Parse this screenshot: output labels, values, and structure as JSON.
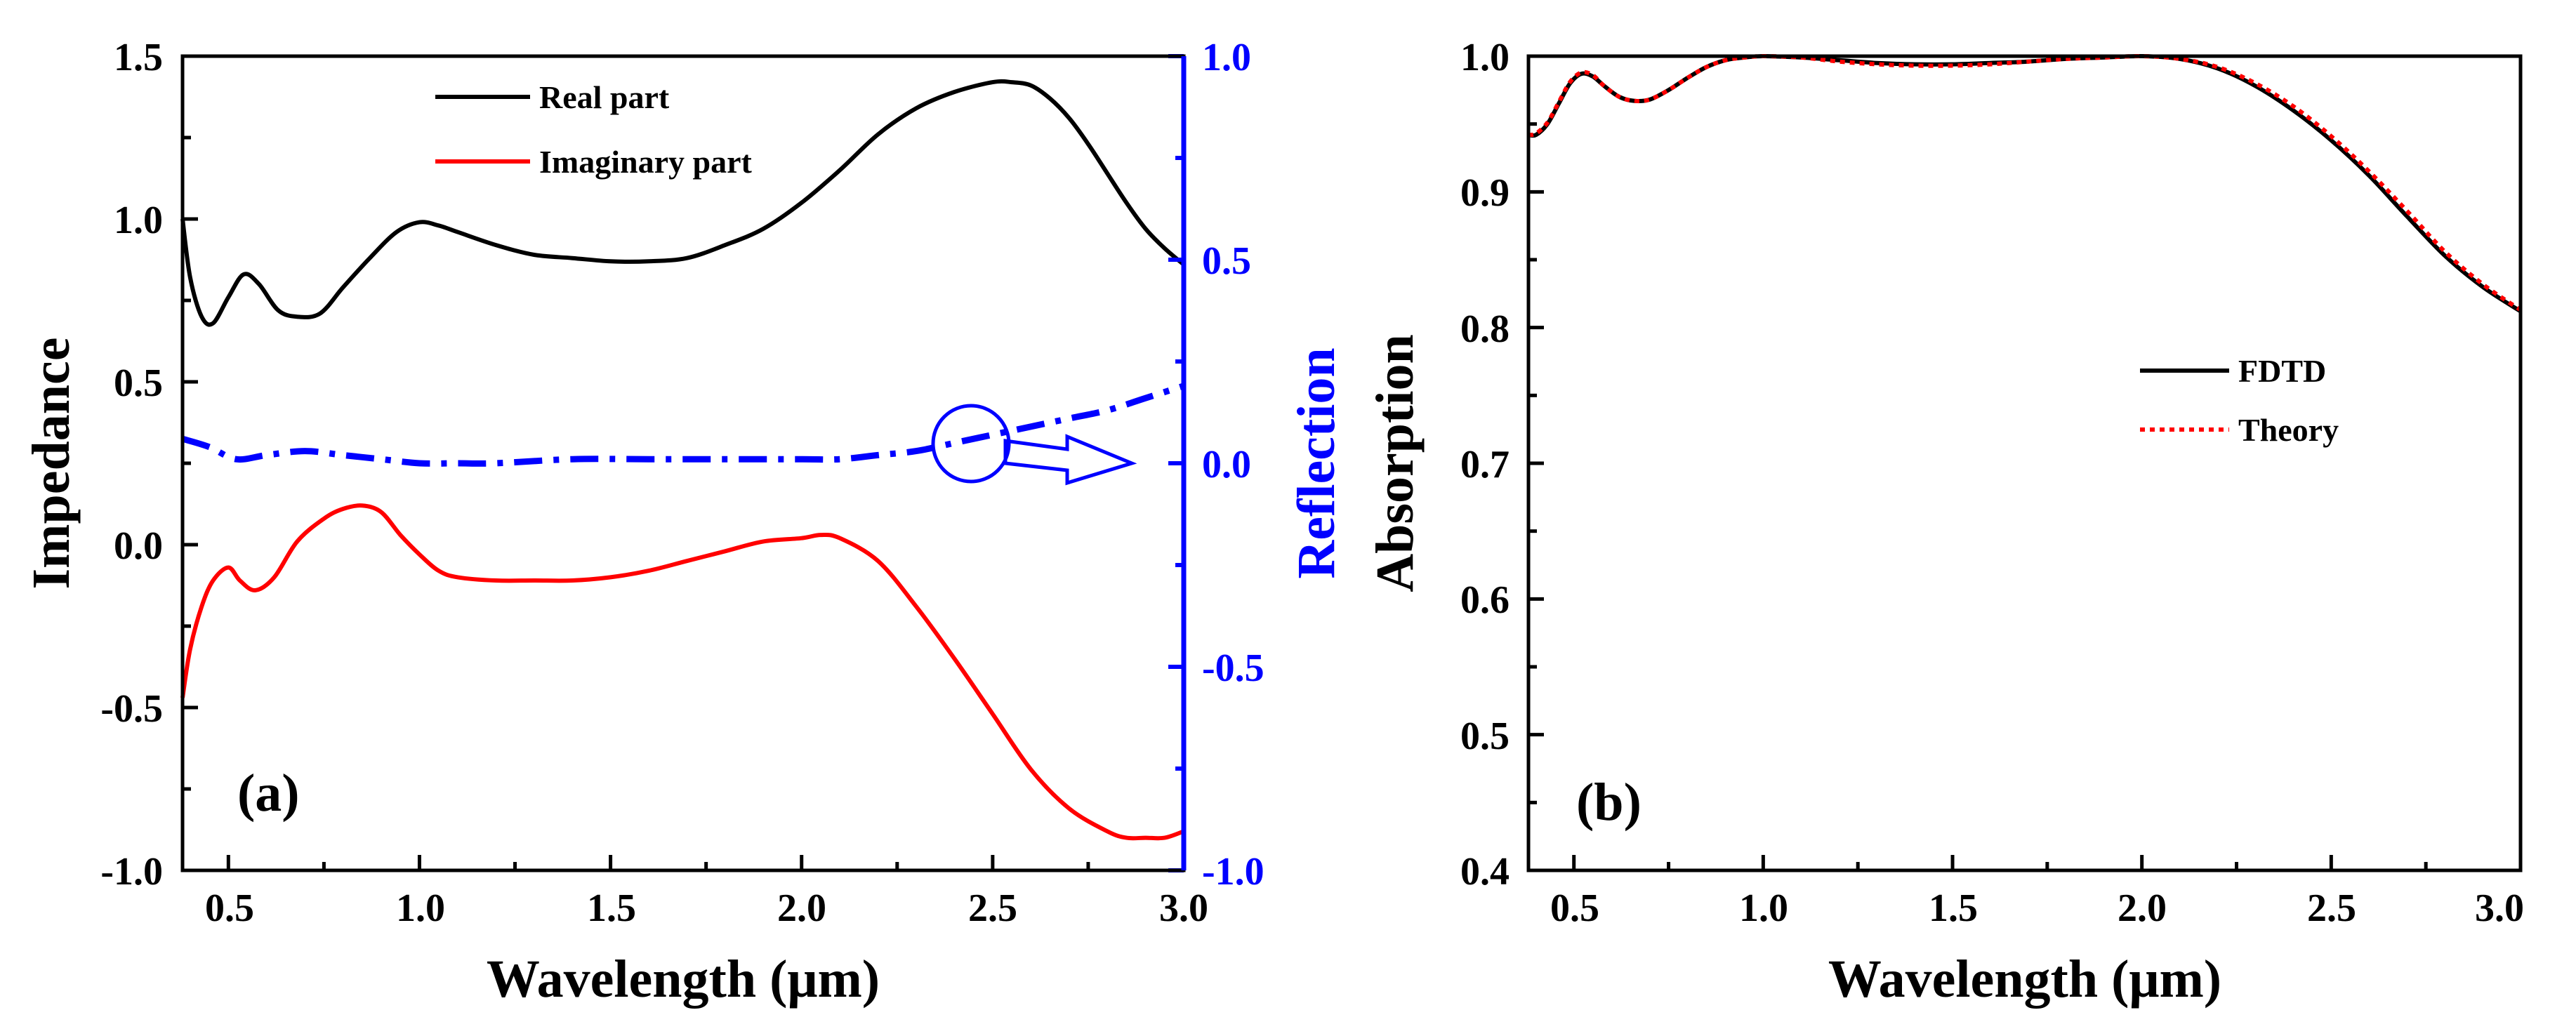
{
  "charts": {
    "a": {
      "panel_label": "(a)",
      "xlabel": "Wavelength (μm)",
      "ylabel": "Impedance",
      "y2label": "Reflection",
      "xticks": [
        "0.5",
        "1.0",
        "1.5",
        "2.0",
        "2.5",
        "3.0"
      ],
      "yticks": [
        "-1.0",
        "-0.5",
        "0.0",
        "0.5",
        "1.0",
        "1.5"
      ],
      "y2ticks": [
        "-1.0",
        "-0.5",
        "0.0",
        "0.5",
        "1.0"
      ],
      "legend": [
        "Real part",
        "Imaginary part"
      ]
    },
    "b": {
      "panel_label": "(b)",
      "xlabel": "Wavelength (μm)",
      "ylabel": "Absorption",
      "xticks": [
        "0.5",
        "1.0",
        "1.5",
        "2.0",
        "2.5",
        "3.0"
      ],
      "yticks": [
        "0.4",
        "0.5",
        "0.6",
        "0.7",
        "0.8",
        "0.9",
        "1.0"
      ],
      "legend": [
        "FDTD",
        "Theory"
      ]
    }
  },
  "colors": {
    "real": "#000000",
    "imag": "#ff0000",
    "reflection": "#0000ff",
    "fdtd": "#000000",
    "theory": "#ff0000"
  },
  "chart_data": [
    {
      "type": "line",
      "xlim": [
        0.38,
        3.0
      ],
      "ylim": [
        -1.0,
        1.5
      ],
      "y2lim": [
        -1.0,
        1.0
      ],
      "legend_position": "top-center",
      "grid": false,
      "series": [
        {
          "name": "Real part",
          "axis": "left",
          "style": "solid",
          "x": [
            0.38,
            0.4,
            0.43,
            0.46,
            0.5,
            0.54,
            0.58,
            0.63,
            0.68,
            0.74,
            0.8,
            0.87,
            0.94,
            1.0,
            1.05,
            1.1,
            1.2,
            1.3,
            1.4,
            1.5,
            1.6,
            1.7,
            1.8,
            1.9,
            2.0,
            2.1,
            2.2,
            2.3,
            2.4,
            2.5,
            2.55,
            2.6,
            2.65,
            2.7,
            2.75,
            2.8,
            2.85,
            2.9,
            2.95,
            3.0
          ],
          "y": [
            1.0,
            0.82,
            0.7,
            0.68,
            0.76,
            0.83,
            0.8,
            0.72,
            0.7,
            0.71,
            0.79,
            0.88,
            0.96,
            0.99,
            0.98,
            0.96,
            0.92,
            0.89,
            0.88,
            0.87,
            0.87,
            0.88,
            0.92,
            0.97,
            1.05,
            1.15,
            1.26,
            1.34,
            1.39,
            1.42,
            1.42,
            1.41,
            1.37,
            1.31,
            1.23,
            1.14,
            1.05,
            0.97,
            0.91,
            0.86
          ]
        },
        {
          "name": "Imaginary part",
          "axis": "left",
          "style": "solid",
          "x": [
            0.38,
            0.4,
            0.43,
            0.46,
            0.5,
            0.53,
            0.57,
            0.62,
            0.68,
            0.75,
            0.8,
            0.85,
            0.9,
            0.95,
            1.0,
            1.05,
            1.1,
            1.2,
            1.3,
            1.4,
            1.5,
            1.6,
            1.7,
            1.8,
            1.9,
            2.0,
            2.05,
            2.1,
            2.2,
            2.3,
            2.4,
            2.5,
            2.6,
            2.7,
            2.8,
            2.85,
            2.9,
            2.95,
            3.0
          ],
          "y": [
            -0.47,
            -0.32,
            -0.19,
            -0.11,
            -0.07,
            -0.11,
            -0.14,
            -0.1,
            0.01,
            0.08,
            0.11,
            0.12,
            0.1,
            0.03,
            -0.03,
            -0.08,
            -0.1,
            -0.11,
            -0.11,
            -0.11,
            -0.1,
            -0.08,
            -0.05,
            -0.02,
            0.01,
            0.02,
            0.03,
            0.02,
            -0.05,
            -0.19,
            -0.35,
            -0.52,
            -0.69,
            -0.81,
            -0.88,
            -0.9,
            -0.9,
            -0.9,
            -0.88
          ]
        },
        {
          "name": "",
          "axis": "right",
          "style": "dash-dot",
          "x": [
            0.38,
            0.45,
            0.52,
            0.6,
            0.7,
            0.8,
            0.9,
            1.0,
            1.1,
            1.2,
            1.4,
            1.6,
            1.8,
            2.0,
            2.1,
            2.2,
            2.3,
            2.4,
            2.5,
            2.6,
            2.7,
            2.8,
            2.9,
            3.0
          ],
          "y": [
            0.06,
            0.04,
            0.01,
            0.02,
            0.03,
            0.02,
            0.01,
            0.0,
            0.0,
            0.0,
            0.01,
            0.01,
            0.01,
            0.01,
            0.01,
            0.02,
            0.03,
            0.05,
            0.07,
            0.09,
            0.11,
            0.13,
            0.16,
            0.19
          ]
        }
      ]
    },
    {
      "type": "line",
      "xlim": [
        0.38,
        3.0
      ],
      "ylim": [
        0.4,
        1.0
      ],
      "legend_position": "center-right",
      "grid": false,
      "series": [
        {
          "name": "FDTD",
          "style": "solid",
          "x": [
            0.38,
            0.4,
            0.43,
            0.46,
            0.49,
            0.52,
            0.55,
            0.58,
            0.62,
            0.66,
            0.7,
            0.75,
            0.8,
            0.85,
            0.9,
            0.95,
            1.0,
            1.1,
            1.2,
            1.3,
            1.4,
            1.5,
            1.6,
            1.7,
            1.8,
            1.9,
            2.0,
            2.1,
            2.2,
            2.3,
            2.4,
            2.5,
            2.6,
            2.7,
            2.8,
            2.9,
            3.0
          ],
          "y": [
            0.942,
            0.942,
            0.95,
            0.965,
            0.98,
            0.987,
            0.985,
            0.978,
            0.97,
            0.967,
            0.968,
            0.975,
            0.984,
            0.992,
            0.997,
            0.999,
            1.0,
            0.999,
            0.997,
            0.995,
            0.994,
            0.994,
            0.995,
            0.996,
            0.998,
            0.999,
            1.0,
            0.998,
            0.991,
            0.978,
            0.96,
            0.938,
            0.912,
            0.882,
            0.853,
            0.83,
            0.812
          ]
        },
        {
          "name": "Theory",
          "style": "dotted",
          "x": [
            0.38,
            0.4,
            0.43,
            0.46,
            0.49,
            0.52,
            0.55,
            0.58,
            0.62,
            0.66,
            0.7,
            0.75,
            0.8,
            0.85,
            0.9,
            0.95,
            1.0,
            1.1,
            1.2,
            1.3,
            1.4,
            1.5,
            1.6,
            1.7,
            1.8,
            1.9,
            2.0,
            2.1,
            2.2,
            2.3,
            2.4,
            2.5,
            2.6,
            2.7,
            2.8,
            2.9,
            3.0
          ],
          "y": [
            0.942,
            0.943,
            0.951,
            0.966,
            0.981,
            0.988,
            0.986,
            0.978,
            0.97,
            0.967,
            0.968,
            0.975,
            0.984,
            0.992,
            0.997,
            0.999,
            1.0,
            0.999,
            0.996,
            0.994,
            0.993,
            0.993,
            0.994,
            0.996,
            0.998,
            0.999,
            1.0,
            0.998,
            0.992,
            0.98,
            0.963,
            0.941,
            0.915,
            0.886,
            0.856,
            0.832,
            0.813
          ]
        }
      ]
    }
  ]
}
